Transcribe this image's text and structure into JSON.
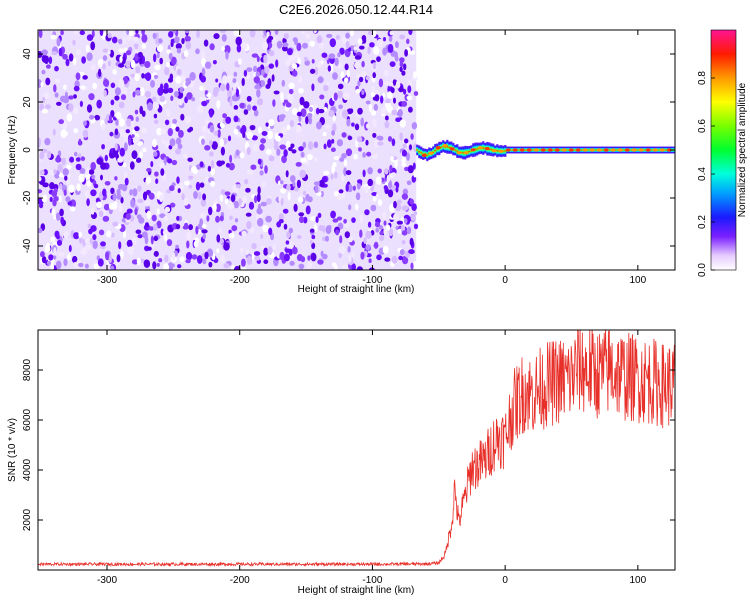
{
  "title": "C2E6.2026.050.12.44.R14",
  "chart_data": [
    {
      "type": "heatmap",
      "name": "spectrogram",
      "xlabel": "Height of straight line (km)",
      "ylabel": "Frequency (Hz)",
      "xlim": [
        -352,
        128
      ],
      "ylim": [
        -50,
        50
      ],
      "xticks": [
        -300,
        -200,
        -100,
        0,
        100
      ],
      "yticks": [
        -40,
        -20,
        0,
        20,
        40
      ],
      "noise_region_x": [
        -352,
        -67
      ],
      "tone_region_x": [
        -67,
        128
      ],
      "tone_frequency_hz": 0,
      "colorbar": {
        "label": "Normalized spectral amplitude",
        "range": [
          0.0,
          1.0
        ],
        "ticks": [
          0.0,
          0.2,
          0.4,
          0.6,
          0.8
        ],
        "tick_labels": [
          "0.0",
          "0.2",
          "0.4",
          "0.6",
          "0.8"
        ]
      }
    },
    {
      "type": "line",
      "name": "snr",
      "xlabel": "Height of straight line (km)",
      "ylabel": "SNR (10 * v/v)",
      "xlim": [
        -352,
        128
      ],
      "ylim": [
        0,
        9600
      ],
      "xticks": [
        -300,
        -200,
        -100,
        0,
        100
      ],
      "yticks": [
        2000,
        4000,
        6000,
        8000
      ],
      "color": "#e8302a",
      "series": [
        {
          "name": "SNR",
          "x": [
            -352,
            -300,
            -250,
            -200,
            -150,
            -100,
            -60,
            -50,
            -45,
            -40,
            -38,
            -35,
            -30,
            -25,
            -20,
            -15,
            -10,
            -5,
            0,
            5,
            10,
            15,
            20,
            30,
            40,
            50,
            55,
            60,
            70,
            80,
            90,
            100,
            110,
            120,
            128
          ],
          "y": [
            250,
            250,
            250,
            250,
            250,
            250,
            260,
            300,
            700,
            2100,
            3500,
            2000,
            3200,
            4400,
            4500,
            4700,
            5300,
            5700,
            5600,
            6800,
            7300,
            7700,
            7500,
            7900,
            8100,
            8200,
            8700,
            8600,
            8400,
            8600,
            8300,
            8200,
            8100,
            7900,
            8000
          ]
        }
      ]
    }
  ]
}
